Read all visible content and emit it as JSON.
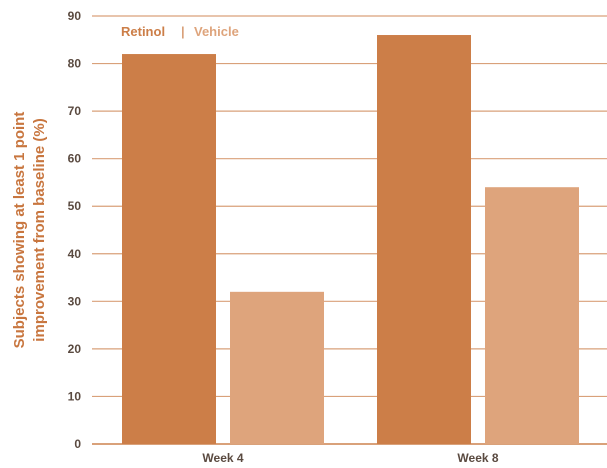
{
  "chart_data": {
    "type": "bar",
    "categories": [
      "Week 4",
      "Week 8"
    ],
    "series": [
      {
        "name": "Retinol",
        "values": [
          82,
          86
        ],
        "color": "#cc7e48"
      },
      {
        "name": "Vehicle",
        "values": [
          32,
          54
        ],
        "color": "#dea47c"
      }
    ],
    "ylabel_lines": [
      "Subjects showing at least 1 point",
      "improvement from baseline (%)"
    ],
    "ylim": [
      0,
      90
    ],
    "yticks": [
      "0",
      "10",
      "20",
      "30",
      "40",
      "50",
      "60",
      "70",
      "80",
      "90"
    ],
    "legend": {
      "items": [
        "Retinol",
        "Vehicle"
      ],
      "separator": "|",
      "position": "top-left"
    },
    "grid": true,
    "colors": {
      "grid": "#d9a17a",
      "axis_text": "#5a4a40",
      "accent": "#c8763f"
    }
  }
}
